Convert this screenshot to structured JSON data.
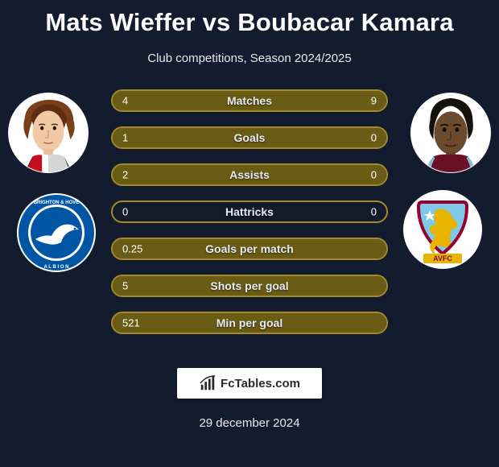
{
  "title": "Mats Wieffer vs Boubacar Kamara",
  "subtitle": "Club competitions, Season 2024/2025",
  "date": "29 december 2024",
  "brand": "FcTables.com",
  "border_color": "#a38b2a",
  "fill_left_color": "#6b5c15",
  "fill_right_color": "#6b5c15",
  "bg": "#131c2e",
  "rows": [
    {
      "label": "Matches",
      "left": "4",
      "right": "9",
      "lfill": 30,
      "rfill": 70
    },
    {
      "label": "Goals",
      "left": "1",
      "right": "0",
      "lfill": 100,
      "rfill": 0
    },
    {
      "label": "Assists",
      "left": "2",
      "right": "0",
      "lfill": 100,
      "rfill": 0
    },
    {
      "label": "Hattricks",
      "left": "0",
      "right": "0",
      "lfill": 0,
      "rfill": 0
    },
    {
      "label": "Goals per match",
      "left": "0.25",
      "right": "",
      "lfill": 100,
      "rfill": 0
    },
    {
      "label": "Shots per goal",
      "left": "5",
      "right": "",
      "lfill": 100,
      "rfill": 0
    },
    {
      "label": "Min per goal",
      "left": "521",
      "right": "",
      "lfill": 100,
      "rfill": 0
    }
  ],
  "player_left": {
    "name": "Mats Wieffer",
    "club": "Brighton & Hove Albion"
  },
  "player_right": {
    "name": "Boubacar Kamara",
    "club": "Aston Villa"
  },
  "crest_left": {
    "ring_outer": "#ffffff",
    "ring_mid": "#0055a5",
    "ring_inner": "#ffffff",
    "center": "#0055a5",
    "text_color": "#ffffff"
  },
  "crest_right": {
    "bg": "#7fc9e8",
    "shield_border": "#97002e",
    "lion": "#e8b400",
    "star": "#ffffff",
    "banner": "#e8b400"
  }
}
